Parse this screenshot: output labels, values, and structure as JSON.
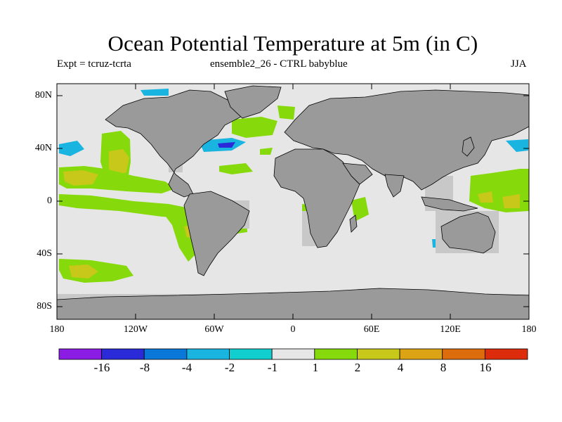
{
  "title": "Ocean Potential Temperature at 5m (in C)",
  "expt_label": "Expt = tcruz-tcrta",
  "ensemble_label": "ensemble2_26 - CTRL babyblue",
  "season": "JJA",
  "lat_ticks": [
    "80N",
    "40N",
    "0",
    "40S",
    "80S"
  ],
  "lon_ticks": [
    "180",
    "120W",
    "60W",
    "0",
    "60E",
    "120E",
    "180"
  ],
  "colorbar": {
    "labels": [
      "-16",
      "-8",
      "-4",
      "-2",
      "-1",
      "1",
      "2",
      "4",
      "8",
      "16"
    ],
    "colors": [
      "#8a1ce4",
      "#2a2ad8",
      "#0a78d8",
      "#1ab4e0",
      "#12cfcf",
      "#e6e6e6",
      "#86d90a",
      "#c8c81a",
      "#dca414",
      "#dc6c0c",
      "#dc2c0c"
    ]
  },
  "map_colors": {
    "ocean": "#e6e6e6",
    "land": "#9a9a9a",
    "land_outline": "#000000",
    "masked_ocean": "#c8c8c8"
  }
}
